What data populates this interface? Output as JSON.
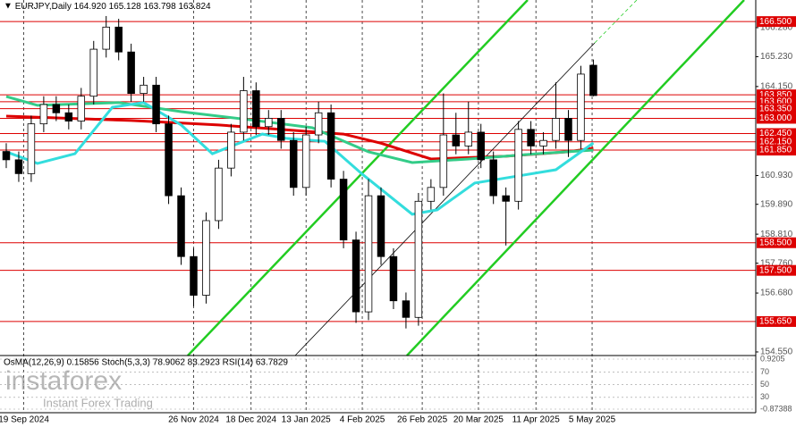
{
  "chart_data": {
    "type": "candlestick",
    "header": {
      "symbol": "EURJPY,Daily",
      "ohlc": [
        "164.920",
        "165.128",
        "163.798",
        "163.824"
      ]
    },
    "open": [
      161.8,
      161.5,
      161.0,
      162.8,
      163.5,
      163.2,
      162.9,
      163.8,
      165.5,
      166.3,
      165.4,
      163.9,
      164.2,
      162.8,
      160.2,
      158.0,
      156.6,
      159.3,
      161.2,
      162.5,
      164.0,
      162.7,
      163.0,
      162.2,
      160.5,
      162.4,
      163.2,
      160.8,
      158.6,
      156.0,
      160.2,
      158.0,
      156.4,
      155.8,
      160.0,
      160.5,
      162.4,
      162.0,
      162.5,
      161.5,
      160.2,
      160.0,
      162.6,
      162.0,
      162.2,
      163.0,
      162.2,
      164.92
    ],
    "high": [
      162.1,
      161.8,
      163.1,
      163.8,
      163.8,
      163.5,
      164.1,
      165.8,
      166.7,
      166.6,
      165.7,
      164.5,
      164.5,
      163.1,
      160.5,
      158.3,
      159.6,
      161.5,
      162.8,
      164.5,
      164.3,
      163.3,
      163.3,
      162.5,
      162.7,
      163.6,
      163.5,
      161.1,
      158.9,
      160.8,
      160.5,
      158.3,
      156.7,
      160.3,
      160.8,
      163.9,
      163.2,
      163.6,
      162.8,
      161.8,
      160.5,
      162.9,
      162.9,
      162.5,
      164.3,
      163.3,
      164.9,
      165.128
    ],
    "low": [
      161.2,
      160.7,
      160.7,
      162.5,
      162.9,
      162.6,
      162.6,
      163.5,
      165.2,
      165.1,
      163.6,
      163.6,
      162.5,
      159.9,
      157.7,
      156.2,
      156.3,
      159.0,
      160.9,
      162.2,
      162.4,
      162.4,
      161.9,
      160.2,
      160.2,
      162.1,
      160.5,
      158.3,
      155.6,
      155.7,
      157.7,
      156.1,
      155.4,
      155.5,
      159.7,
      160.2,
      161.7,
      161.7,
      161.2,
      159.9,
      158.4,
      159.7,
      161.7,
      161.7,
      161.9,
      161.6,
      161.9,
      163.798
    ],
    "close": [
      161.5,
      161.0,
      162.8,
      163.5,
      163.2,
      162.9,
      163.8,
      165.5,
      166.3,
      165.4,
      163.9,
      164.2,
      162.8,
      160.2,
      158.0,
      156.6,
      159.3,
      161.2,
      162.5,
      164.0,
      162.7,
      163.0,
      162.2,
      160.5,
      162.4,
      163.2,
      160.8,
      158.6,
      156.0,
      160.2,
      158.0,
      156.4,
      155.8,
      160.0,
      160.5,
      162.4,
      162.0,
      162.5,
      161.5,
      160.2,
      160.0,
      162.6,
      162.0,
      162.2,
      163.0,
      162.2,
      164.6,
      163.824
    ],
    "series": [
      {
        "color": "#dd0000",
        "x": [
          0,
          10,
          17,
          22,
          27,
          30,
          34,
          40,
          45,
          47
        ],
        "values": [
          163.08,
          162.92,
          162.76,
          162.6,
          162.43,
          162.1,
          161.53,
          161.63,
          161.79,
          161.92
        ]
      },
      {
        "color": "#33cc88",
        "x": [
          0,
          2.5,
          9,
          14,
          20,
          24.5,
          29,
          32.5,
          37,
          42.5,
          47
        ],
        "values": [
          163.79,
          163.47,
          163.57,
          163.24,
          162.92,
          162.66,
          161.79,
          161.4,
          161.53,
          161.72,
          161.85
        ]
      },
      {
        "color": "#33dddd",
        "x": [
          0,
          2.5,
          5.5,
          8.5,
          11,
          14,
          16.5,
          20.5,
          22.5,
          25.5,
          28.5,
          32.5,
          34.5,
          37.5,
          40.5,
          44,
          47
        ],
        "values": [
          161.79,
          161.37,
          161.72,
          163.4,
          163.57,
          162.76,
          161.72,
          162.43,
          162.27,
          162.17,
          160.98,
          159.53,
          159.69,
          160.66,
          160.88,
          161.14,
          162.11
        ]
      }
    ],
    "levels": [
      {
        "value": 166.5,
        "label": "166.500"
      },
      {
        "value": 163.85,
        "label": "163.850"
      },
      {
        "value": 163.6,
        "label": "163.600"
      },
      {
        "value": 163.35,
        "label": "163.350"
      },
      {
        "value": 163.0,
        "label": "163.000"
      },
      {
        "value": 162.45,
        "label": "162.450"
      },
      {
        "value": 162.15,
        "label": "162.150"
      },
      {
        "value": 161.85,
        "label": "161.850"
      },
      {
        "value": 158.5,
        "label": "158.500"
      },
      {
        "value": 157.5,
        "label": "157.500"
      },
      {
        "value": 155.65,
        "label": "155.650"
      }
    ],
    "level_color": "#dd0000",
    "xlim": [
      -0.5,
      60
    ],
    "ylim": [
      154.42,
      167.28
    ],
    "yticks": [
      {
        "value": 166.28,
        "label": "166.280"
      },
      {
        "value": 165.23,
        "label": "165.230"
      },
      {
        "value": 164.15,
        "label": "164.150"
      },
      {
        "value": 160.93,
        "label": "160.930"
      },
      {
        "value": 159.89,
        "label": "159.890"
      },
      {
        "value": 158.81,
        "label": "158.810"
      },
      {
        "value": 157.76,
        "label": "157.760"
      },
      {
        "value": 156.68,
        "label": "156.680"
      },
      {
        "value": 154.55,
        "label": "154.550"
      }
    ],
    "xticks": [
      {
        "value": 1.4,
        "label": "19 Sep 2024"
      },
      {
        "value": 15,
        "label": "26 Nov 2024"
      },
      {
        "value": 19.6,
        "label": "18 Dec 2024"
      },
      {
        "value": 24,
        "label": "13 Jan 2025"
      },
      {
        "value": 28.5,
        "label": "4 Feb 2025"
      },
      {
        "value": 33.3,
        "label": "26 Feb 2025"
      },
      {
        "value": 37.8,
        "label": "20 Mar 2025"
      },
      {
        "value": 42.4,
        "label": "11 Apr 2025"
      },
      {
        "value": 46.9,
        "label": "5 May 2025"
      }
    ],
    "grid": true,
    "indicator": {
      "title": "OsMA(12,26,9) 0.15856 Stoch(5,3,3) 78.9062 83.2923 RSI(14) 63.7829",
      "ylim": [
        -0.87388,
        0.9205
      ],
      "ticks": [
        {
          "value": 0.9205,
          "label": "0.9205"
        },
        {
          "value": 0.45,
          "label": "70"
        },
        {
          "value": 0.0,
          "label": "50"
        },
        {
          "value": -0.45,
          "label": "30"
        },
        {
          "value": -0.87388,
          "label": "-0.87388"
        }
      ]
    },
    "watermark": {
      "brand": "instaforex",
      "tagline": "Instant Forex Trading"
    }
  }
}
